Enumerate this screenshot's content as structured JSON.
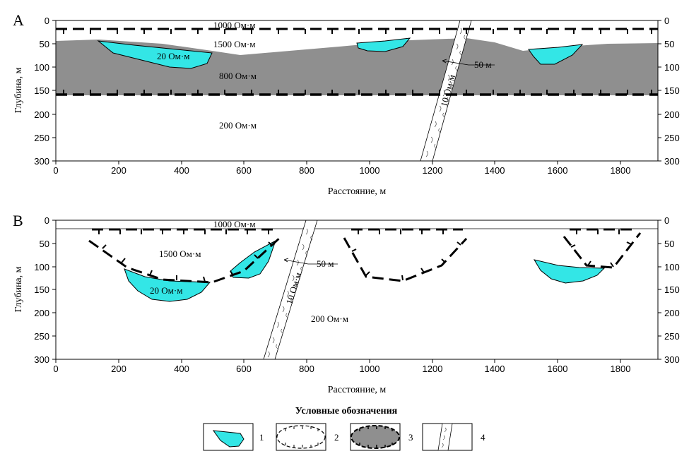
{
  "panels": [
    {
      "letter": "A",
      "x_ticks": [
        "0",
        "200",
        "400",
        "600",
        "800",
        "1000",
        "1200",
        "1400",
        "1600",
        "1800"
      ],
      "y_ticks": [
        "0",
        "50",
        "100",
        "150",
        "200",
        "250",
        "300"
      ],
      "x_label": "Расстояние, м",
      "y_label": "Глубина, м",
      "labels": {
        "r1000": "1000 Ом·м",
        "r1500": "1500 Ом·м",
        "r20": "20 Ом·м",
        "r800": "800 Ом·м",
        "r200": "200 Ом·м",
        "r10": "10 Ом·м",
        "width": "50 м"
      }
    },
    {
      "letter": "B",
      "x_ticks": [
        "0",
        "200",
        "400",
        "600",
        "800",
        "1000",
        "1200",
        "1400",
        "1600",
        "1800"
      ],
      "y_ticks": [
        "0",
        "50",
        "100",
        "150",
        "200",
        "250",
        "300"
      ],
      "x_label": "Расстояние, м",
      "y_label": "Глубина, м",
      "labels": {
        "r1000": "1000 Ом·м",
        "r1500": "1500 Ом·м",
        "r20": "20 Ом·м",
        "r200": "200 Ом·м",
        "r10": "10 Ом·м",
        "width": "50 м"
      }
    }
  ],
  "legend": {
    "title": "Условные обозначения",
    "items": [
      {
        "number": "1",
        "icon": "cyan-lens-icon"
      },
      {
        "number": "2",
        "icon": "dashed-boundary-white-icon"
      },
      {
        "number": "3",
        "icon": "dashed-boundary-gray-icon"
      },
      {
        "number": "4",
        "icon": "fault-zone-icon"
      }
    ]
  },
  "colors": {
    "lens": "#33e6e6",
    "layer800": "#8f8f8f",
    "frame": "#000000",
    "background": "#ffffff"
  }
}
